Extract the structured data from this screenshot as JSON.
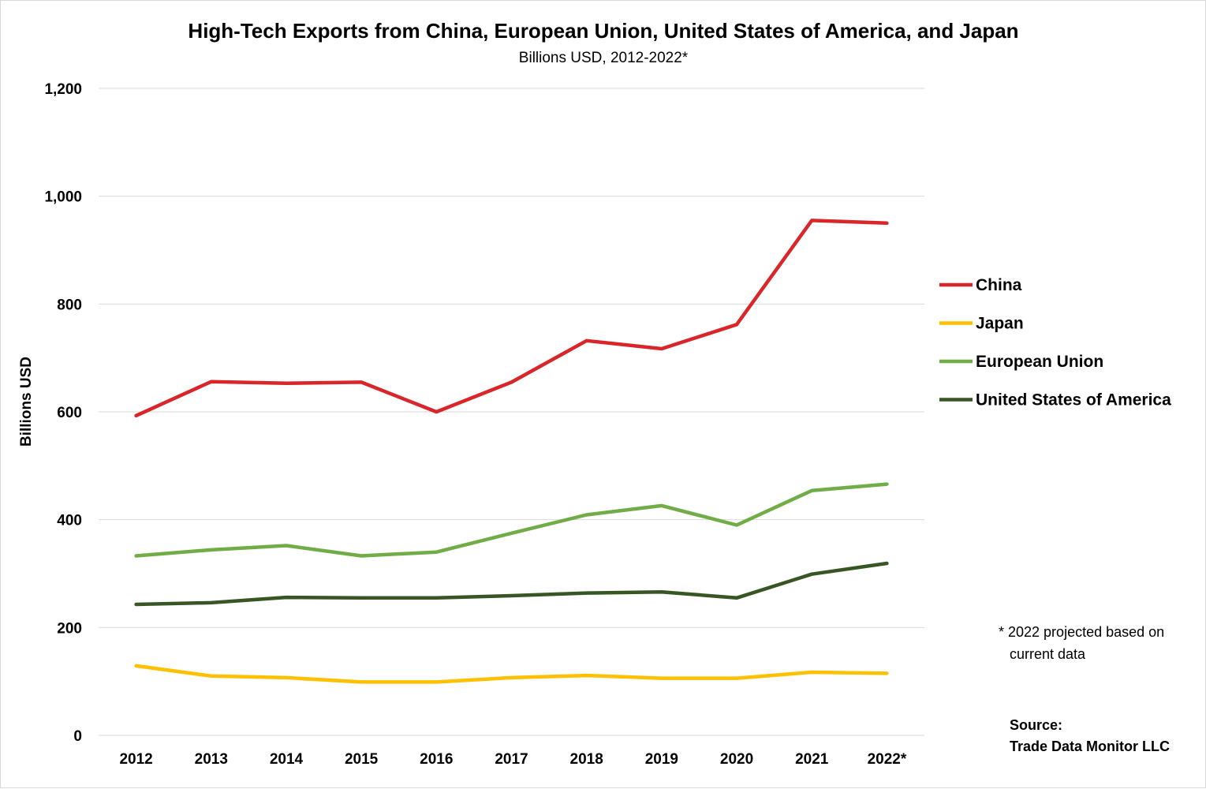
{
  "chart_data": {
    "type": "line",
    "title": "High-Tech Exports from China, European Union, United States of America, and Japan",
    "subtitle": "Billions USD, 2012-2022*",
    "xlabel": "",
    "ylabel": "Billions USD",
    "categories": [
      "2012",
      "2013",
      "2014",
      "2015",
      "2016",
      "2017",
      "2018",
      "2019",
      "2020",
      "2021",
      "2022*"
    ],
    "ylim": [
      0,
      1200
    ],
    "yticks": [
      "0",
      "200",
      "400",
      "600",
      "800",
      "1,000",
      "1,200"
    ],
    "ytick_values": [
      0,
      200,
      400,
      600,
      800,
      1000,
      1200
    ],
    "grid": true,
    "legend_position": "right",
    "series": [
      {
        "name": "China",
        "color": "#d9262b",
        "values": [
          593,
          656,
          653,
          655,
          600,
          655,
          732,
          717,
          762,
          955,
          950
        ]
      },
      {
        "name": "Japan",
        "color": "#ffc000",
        "values": [
          129,
          110,
          107,
          99,
          99,
          107,
          111,
          106,
          106,
          117,
          115
        ]
      },
      {
        "name": "European Union",
        "color": "#70ad47",
        "values": [
          333,
          344,
          352,
          333,
          340,
          375,
          409,
          426,
          390,
          454,
          466
        ]
      },
      {
        "name": "United States of America",
        "color": "#375623",
        "values": [
          243,
          246,
          256,
          255,
          255,
          259,
          264,
          266,
          255,
          299,
          319
        ]
      }
    ],
    "note_lines": [
      "* 2022 projected based on",
      "current data"
    ],
    "source_lines": [
      "Source:",
      "Trade Data Monitor LLC"
    ]
  }
}
